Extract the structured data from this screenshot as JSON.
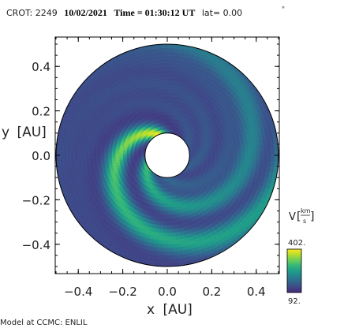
{
  "header": {
    "crot_label": "CROT: 2249",
    "date": "10/02/2021",
    "time_label": "Time = 01:30:12 UT",
    "lat_label": "lat= 0.00",
    "lat_unit": "°"
  },
  "chart_data": {
    "type": "heatmap",
    "description_type": "polar-annulus",
    "xlabel": "x",
    "xlabel_unit": "[AU]",
    "ylabel": "y",
    "ylabel_unit": "[AU]",
    "xlim": [
      -0.5,
      0.5
    ],
    "ylim": [
      -0.5,
      0.5
    ],
    "xticks": [
      -0.4,
      -0.2,
      0.0,
      0.2,
      0.4
    ],
    "xtick_labels": [
      "−0.4",
      "−0.2",
      "0.0",
      "0.2",
      "0.4"
    ],
    "yticks": [
      -0.4,
      -0.2,
      0.0,
      0.2,
      0.4
    ],
    "ytick_labels": [
      "−0.4",
      "−0.2",
      "0.0",
      "0.2",
      "0.4"
    ],
    "inner_radius_au": 0.1,
    "outer_radius_au": 0.5,
    "colorbar": {
      "label": "V",
      "unit_num": "km",
      "unit_den": "s",
      "min": 92,
      "max": 402,
      "min_label": "92.",
      "max_label": "402.",
      "colors": [
        "#482878",
        "#3e4989",
        "#31688e",
        "#26828e",
        "#1f9e89",
        "#35b779",
        "#6ece58",
        "#b5de2b",
        "#fde725"
      ]
    },
    "background_speed": 110,
    "streams": [
      {
        "name": "",
        "phase_deg": 113,
        "peak_speed": 402,
        "twist_deg_per_au": 560
      },
      {
        "name": "",
        "phase_deg": 208,
        "peak_speed": 300,
        "twist_deg_per_au": 560
      },
      {
        "name": "",
        "phase_deg": 268,
        "peak_speed": 170,
        "twist_deg_per_au": 560
      },
      {
        "name": "",
        "phase_deg": 330,
        "peak_speed": 160,
        "twist_deg_per_au": 560
      },
      {
        "name": "",
        "phase_deg": 25,
        "peak_speed": 150,
        "twist_deg_per_au": 560
      }
    ]
  },
  "footer": {
    "model_label": "Model at CCMC: ENLIL"
  }
}
